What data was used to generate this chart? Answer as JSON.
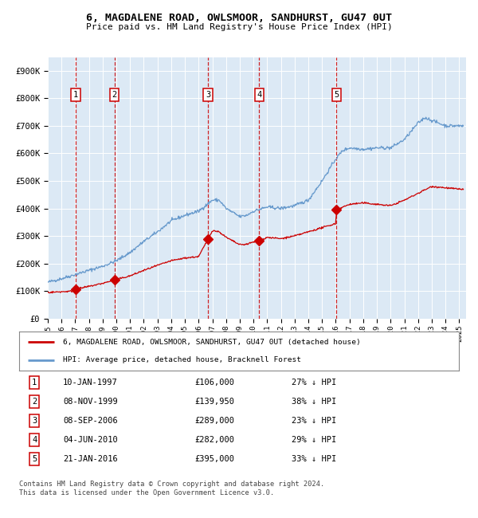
{
  "title": "6, MAGDALENE ROAD, OWLSMOOR, SANDHURST, GU47 0UT",
  "subtitle": "Price paid vs. HM Land Registry's House Price Index (HPI)",
  "background_color": "#dce9f5",
  "ylim": [
    0,
    950000
  ],
  "yticks": [
    0,
    100000,
    200000,
    300000,
    400000,
    500000,
    600000,
    700000,
    800000,
    900000
  ],
  "ytick_labels": [
    "£0",
    "£100K",
    "£200K",
    "£300K",
    "£400K",
    "£500K",
    "£600K",
    "£700K",
    "£800K",
    "£900K"
  ],
  "xlim_start": 1995.0,
  "xlim_end": 2025.5,
  "sale_dates": [
    1997.03,
    1999.86,
    2006.69,
    2010.42,
    2016.05
  ],
  "sale_prices": [
    106000,
    139950,
    289000,
    282000,
    395000
  ],
  "sale_labels": [
    "1",
    "2",
    "3",
    "4",
    "5"
  ],
  "legend_line1": "6, MAGDALENE ROAD, OWLSMOOR, SANDHURST, GU47 0UT (detached house)",
  "legend_line2": "HPI: Average price, detached house, Bracknell Forest",
  "table_data": [
    [
      "1",
      "10-JAN-1997",
      "£106,000",
      "27% ↓ HPI"
    ],
    [
      "2",
      "08-NOV-1999",
      "£139,950",
      "38% ↓ HPI"
    ],
    [
      "3",
      "08-SEP-2006",
      "£289,000",
      "23% ↓ HPI"
    ],
    [
      "4",
      "04-JUN-2010",
      "£282,000",
      "29% ↓ HPI"
    ],
    [
      "5",
      "21-JAN-2016",
      "£395,000",
      "33% ↓ HPI"
    ]
  ],
  "footer": "Contains HM Land Registry data © Crown copyright and database right 2024.\nThis data is licensed under the Open Government Licence v3.0.",
  "red_color": "#cc0000",
  "blue_color": "#6699cc",
  "hpi_anchors_x": [
    1995,
    1996,
    1997,
    1998,
    1999,
    2000,
    2001,
    2002,
    2003,
    2004,
    2005,
    2006,
    2007,
    2007.5,
    2008,
    2009,
    2009.5,
    2010,
    2011,
    2012,
    2013,
    2014,
    2015,
    2016,
    2016.5,
    2017,
    2018,
    2019,
    2020,
    2021,
    2022,
    2022.5,
    2023,
    2024,
    2025
  ],
  "hpi_anchors_y": [
    132000,
    145000,
    160000,
    175000,
    190000,
    210000,
    240000,
    280000,
    315000,
    355000,
    375000,
    390000,
    430000,
    430000,
    400000,
    370000,
    375000,
    390000,
    405000,
    400000,
    410000,
    430000,
    500000,
    580000,
    610000,
    620000,
    615000,
    620000,
    620000,
    650000,
    710000,
    730000,
    720000,
    700000,
    700000
  ],
  "pp_anchors_x": [
    1995.0,
    1997.0,
    1997.03,
    1999.0,
    1999.86,
    2001,
    2002,
    2003,
    2004,
    2005,
    2006.0,
    2006.69,
    2007,
    2007.5,
    2008,
    2009,
    2009.5,
    2010.0,
    2010.42,
    2011,
    2012,
    2013,
    2014,
    2015,
    2016.0,
    2016.05,
    2017,
    2018,
    2019,
    2020,
    2021,
    2022,
    2023,
    2024,
    2025
  ],
  "pp_anchors_y": [
    95000,
    100000,
    106000,
    128000,
    139950,
    155000,
    175000,
    193000,
    210000,
    220000,
    225000,
    289000,
    320000,
    315000,
    295000,
    268000,
    270000,
    278000,
    282000,
    295000,
    290000,
    300000,
    315000,
    330000,
    345000,
    395000,
    415000,
    420000,
    415000,
    410000,
    430000,
    455000,
    480000,
    475000,
    470000
  ]
}
